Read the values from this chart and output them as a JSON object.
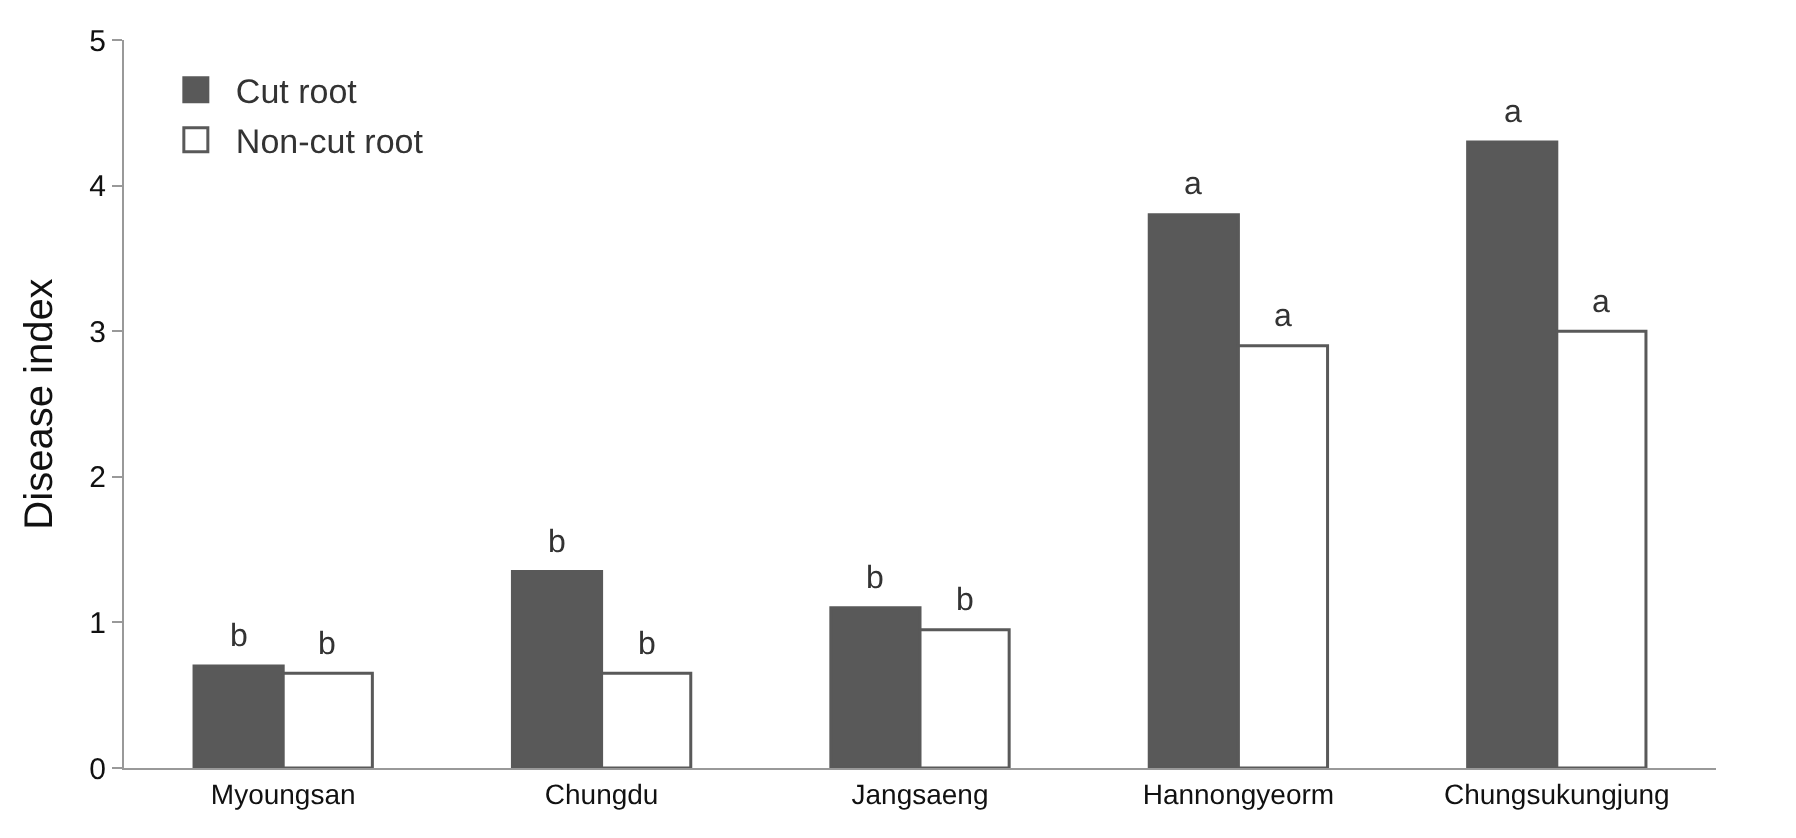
{
  "chart_data": {
    "type": "bar",
    "ylabel": "Disease index",
    "categories": [
      "Myoungsan",
      "Chungdu",
      "Jangsaeng",
      "Hannongyeorm",
      "Chungsukungjung"
    ],
    "series": [
      {
        "name": "Cut root",
        "color": "#595959",
        "values": [
          0.7,
          1.35,
          1.1,
          3.8,
          4.3
        ]
      },
      {
        "name": "Non-cut root",
        "color": "#ffffff",
        "values": [
          0.65,
          0.65,
          0.95,
          2.9,
          3.0
        ]
      }
    ],
    "ylim": [
      0,
      5
    ],
    "yticks": [
      0,
      1,
      2,
      3,
      4,
      5
    ],
    "grid": false,
    "legend": "top left",
    "annotations": [
      {
        "text": "b",
        "x": "Myoungsan",
        "y": 0.7
      },
      {
        "text": "b",
        "x": "Myoungsan",
        "y": 0.65
      },
      {
        "text": "b",
        "x": "Chungdu",
        "y": 1.35
      },
      {
        "text": "b",
        "x": "Chungdu",
        "y": 0.65
      },
      {
        "text": "b",
        "x": "Jangsaeng",
        "y": 1.1
      },
      {
        "text": "b",
        "x": "Jangsaeng",
        "y": 0.95
      },
      {
        "text": "a",
        "x": "Hannongyeorm",
        "y": 3.8
      },
      {
        "text": "a",
        "x": "Hannongyeorm",
        "y": 2.9
      },
      {
        "text": "a",
        "x": "Chungsukungjung",
        "y": 4.3
      },
      {
        "text": "a",
        "x": "Chungsukungjung",
        "y": 3.0
      }
    ]
  }
}
